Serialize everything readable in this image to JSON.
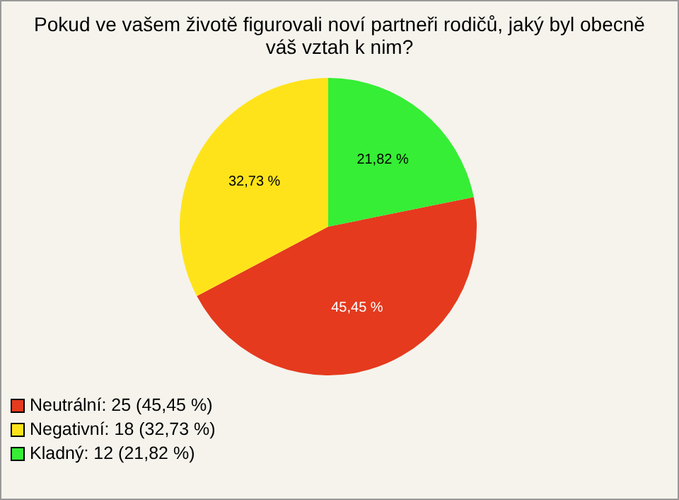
{
  "chart_data": {
    "type": "pie",
    "title": "Pokud ve vašem životě figurovali noví partneři rodičů, jaký byl obecně váš vztah k nim?",
    "categories": [
      "Neutrální: 25 (45,45 %)",
      "Negativní: 18 (32,73 %)",
      "Kladný: 12 (21,82 %)"
    ],
    "values": [
      45.45,
      32.73,
      21.82
    ],
    "value_labels": [
      "45,45 %",
      "32,73 %",
      "21,82 %"
    ],
    "colors": [
      "#e53a1e",
      "#ffe31a",
      "#35ee35"
    ],
    "legend": "bottom left"
  }
}
